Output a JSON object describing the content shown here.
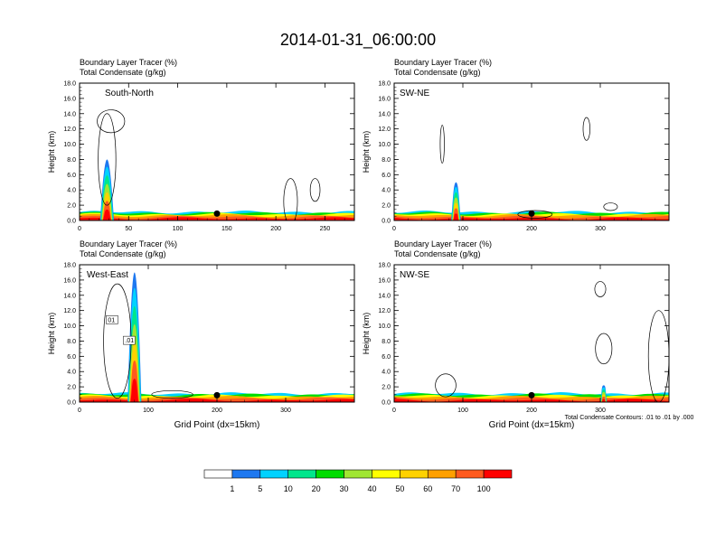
{
  "figure": {
    "title": "2014-01-31_06:00:00",
    "note": "Total Condensate Contours: .01 to .01 by .000"
  },
  "colors": {
    "levels": [
      "#ffffff",
      "#1e78f0",
      "#00d2ff",
      "#00e68c",
      "#00dc00",
      "#a0e632",
      "#ffff00",
      "#ffd200",
      "#ffa000",
      "#ff5a1e",
      "#ff0000"
    ],
    "boundary_labels": [
      "1",
      "5",
      "10",
      "20",
      "30",
      "40",
      "50",
      "60",
      "70",
      "100"
    ]
  },
  "chart_data": [
    {
      "type": "contour",
      "subtitle1": "Boundary Layer Tracer   (%)",
      "subtitle2": "Total Condensate   (g/kg)",
      "panel_label": "South-North",
      "ylabel": "Height (km)",
      "xlabel": "",
      "xlim": [
        0,
        280
      ],
      "xticks": [
        "0",
        "50",
        "100",
        "150",
        "200",
        "250"
      ],
      "xtick_values": [
        0,
        50,
        100,
        150,
        200,
        250
      ],
      "ylim": [
        0,
        18
      ],
      "yticks": [
        "0.0",
        "2.0",
        "4.0",
        "6.0",
        "8.0",
        "10.0",
        "12.0",
        "14.0",
        "16.0",
        "18.0"
      ],
      "marker_x": 140,
      "plume": {
        "x": 28,
        "top": 8.0,
        "width": 14
      },
      "contour_labels": []
    },
    {
      "type": "contour",
      "subtitle1": "Boundary Layer Tracer   (%)",
      "subtitle2": "Total Condensate   (g/kg)",
      "panel_label": "SW-NE",
      "ylabel": "Height (km)",
      "xlabel": "",
      "xlim": [
        0,
        400
      ],
      "xticks": [
        "0",
        "100",
        "200",
        "300"
      ],
      "xtick_values": [
        0,
        100,
        200,
        300
      ],
      "ylim": [
        0,
        18
      ],
      "yticks": [
        "0.0",
        "2.0",
        "4.0",
        "6.0",
        "8.0",
        "10.0",
        "12.0",
        "14.0",
        "16.0",
        "18.0"
      ],
      "marker_x": 200,
      "plume": {
        "x": 90,
        "top": 5.0,
        "width": 14
      },
      "contour_labels": []
    },
    {
      "type": "contour",
      "subtitle1": "Boundary Layer Tracer   (%)",
      "subtitle2": "Total Condensate   (g/kg)",
      "panel_label": "West-East",
      "ylabel": "Height (km)",
      "xlabel": "Grid Point (dx=15km)",
      "xlim": [
        0,
        400
      ],
      "xticks": [
        "0",
        "100",
        "200",
        "300"
      ],
      "xtick_values": [
        0,
        100,
        200,
        300
      ],
      "ylim": [
        0,
        18
      ],
      "yticks": [
        "0.0",
        "2.0",
        "4.0",
        "6.0",
        "8.0",
        "10.0",
        "12.0",
        "14.0",
        "16.0",
        "18.0"
      ],
      "marker_x": 200,
      "plume": {
        "x": 80,
        "top": 17.0,
        "width": 20
      },
      "contour_labels": [
        "01",
        ".01"
      ]
    },
    {
      "type": "contour",
      "subtitle1": "Boundary Layer Tracer   (%)",
      "subtitle2": "Total Condensate   (g/kg)",
      "panel_label": "NW-SE",
      "ylabel": "Height (km)",
      "xlabel": "Grid Point (dx=15km)",
      "xlim": [
        0,
        400
      ],
      "xticks": [
        "0",
        "100",
        "200",
        "300"
      ],
      "xtick_values": [
        0,
        100,
        200,
        300
      ],
      "ylim": [
        0,
        18
      ],
      "yticks": [
        "0.0",
        "2.0",
        "4.0",
        "6.0",
        "8.0",
        "10.0",
        "12.0",
        "14.0",
        "16.0",
        "18.0"
      ],
      "marker_x": 200,
      "plume": {
        "x": 305,
        "top": 2.2,
        "width": 10
      },
      "contour_labels": []
    }
  ]
}
